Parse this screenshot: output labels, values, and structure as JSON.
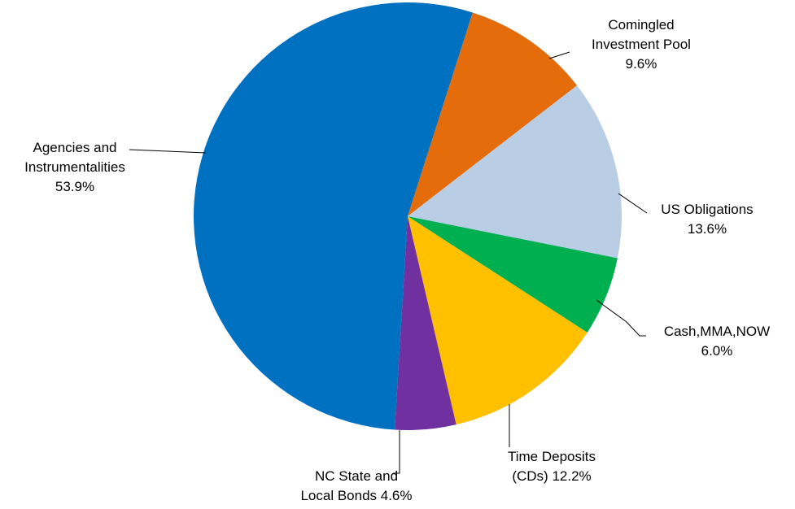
{
  "chart_data": {
    "type": "pie",
    "title": "",
    "start_angle_deg": 162.5,
    "direction": "clockwise_from_agencies",
    "slices": [
      {
        "label_lines": [
          "Agencies and",
          "Instrumentalities",
          "53.9%"
        ],
        "name": "Agencies and Instrumentalities",
        "value": 53.9,
        "color": "#0070C0"
      },
      {
        "label_lines": [
          "Comingled",
          "Investment Pool",
          "9.6%"
        ],
        "name": "Comingled Investment Pool",
        "value": 9.6,
        "color": "#E46C0A"
      },
      {
        "label_lines": [
          "US Obligations",
          "13.6%"
        ],
        "name": "US Obligations",
        "value": 13.6,
        "color": "#B9CDE5"
      },
      {
        "label_lines": [
          "Cash,MMA,NOW",
          "6.0%"
        ],
        "name": "Cash,MMA,NOW",
        "value": 6.0,
        "color": "#00B050"
      },
      {
        "label_lines": [
          "Time Deposits",
          "(CDs) 12.2%"
        ],
        "name": "Time Deposits (CDs)",
        "value": 12.2,
        "color": "#FFC000"
      },
      {
        "label_lines": [
          "NC State and",
          "Local Bonds 4.6%"
        ],
        "name": "NC State and Local Bonds",
        "value": 4.6,
        "color": "#7030A0"
      }
    ]
  }
}
